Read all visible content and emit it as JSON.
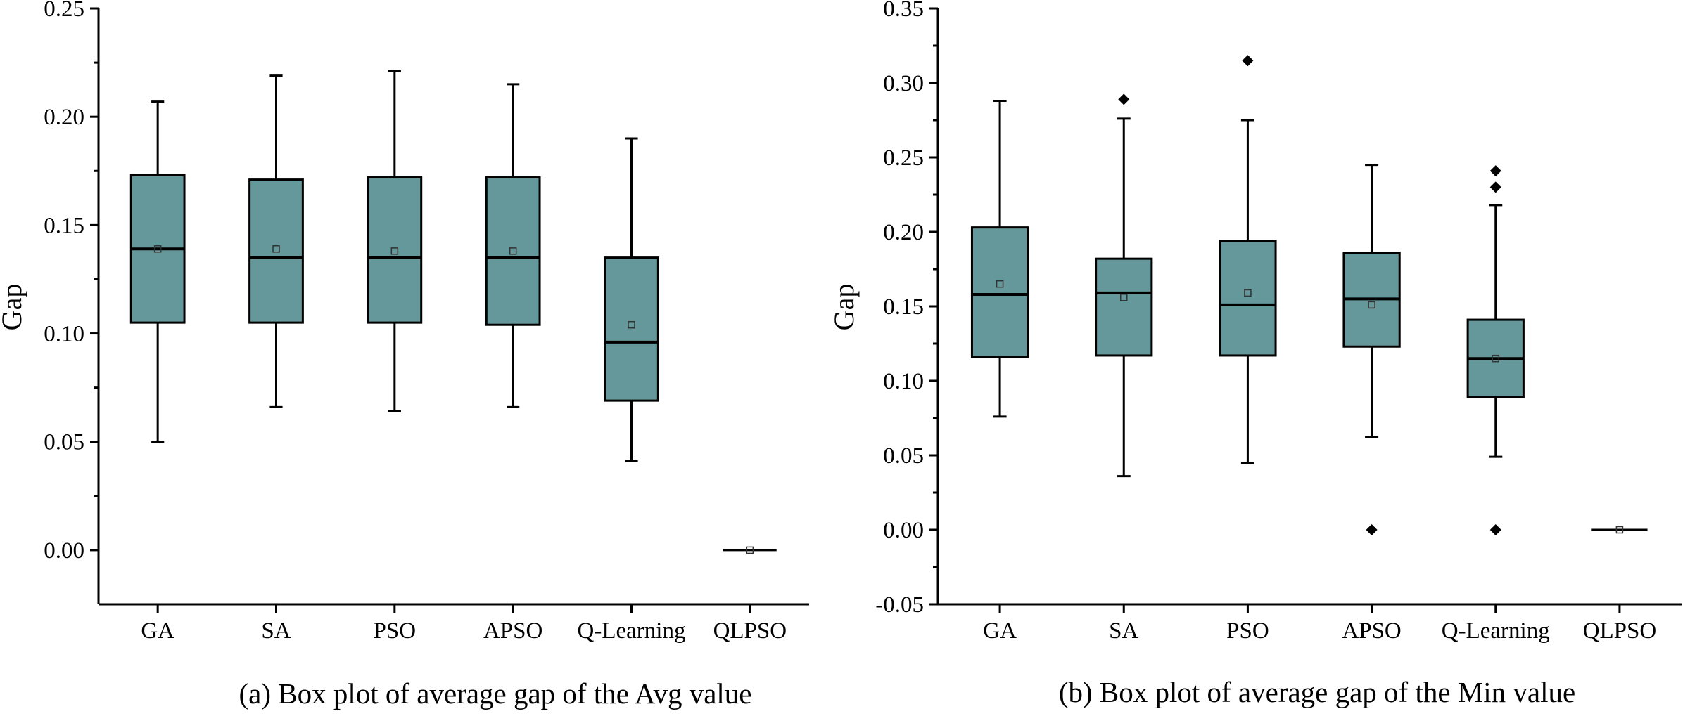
{
  "style": {
    "box_fill": "#65989a",
    "line_color": "#000000",
    "mean_marker_color": "#333333"
  },
  "chart_data": [
    {
      "type": "box",
      "caption": "(a) Box plot of average gap of the Avg value",
      "ylabel": "Gap",
      "xlabel": "",
      "ylim": [
        -0.025,
        0.25
      ],
      "yticks": [
        0.0,
        0.05,
        0.1,
        0.15,
        0.2,
        0.25
      ],
      "ytick_labels": [
        "0.00",
        "0.05",
        "0.10",
        "0.15",
        "0.20",
        "0.25"
      ],
      "categories": [
        "GA",
        "SA",
        "PSO",
        "APSO",
        "Q-Learning",
        "QLPSO"
      ],
      "boxes": [
        {
          "whisker_low": 0.05,
          "q1": 0.105,
          "median": 0.139,
          "q3": 0.173,
          "whisker_high": 0.207,
          "mean": 0.139,
          "outliers": []
        },
        {
          "whisker_low": 0.066,
          "q1": 0.105,
          "median": 0.135,
          "q3": 0.171,
          "whisker_high": 0.219,
          "mean": 0.139,
          "outliers": []
        },
        {
          "whisker_low": 0.064,
          "q1": 0.105,
          "median": 0.135,
          "q3": 0.172,
          "whisker_high": 0.221,
          "mean": 0.138,
          "outliers": []
        },
        {
          "whisker_low": 0.066,
          "q1": 0.104,
          "median": 0.135,
          "q3": 0.172,
          "whisker_high": 0.215,
          "mean": 0.138,
          "outliers": []
        },
        {
          "whisker_low": 0.041,
          "q1": 0.069,
          "median": 0.096,
          "q3": 0.135,
          "whisker_high": 0.19,
          "mean": 0.104,
          "outliers": []
        },
        {
          "whisker_low": 0.0,
          "q1": 0.0,
          "median": 0.0,
          "q3": 0.0,
          "whisker_high": 0.0,
          "mean": 0.0,
          "outliers": []
        }
      ]
    },
    {
      "type": "box",
      "caption": "(b) Box plot of average gap of the Min value",
      "ylabel": "Gap",
      "xlabel": "",
      "ylim": [
        -0.05,
        0.35
      ],
      "yticks": [
        -0.05,
        0.0,
        0.05,
        0.1,
        0.15,
        0.2,
        0.25,
        0.3,
        0.35
      ],
      "ytick_labels": [
        "-0.05",
        "0.00",
        "0.05",
        "0.10",
        "0.15",
        "0.20",
        "0.25",
        "0.30",
        "0.35"
      ],
      "categories": [
        "GA",
        "SA",
        "PSO",
        "APSO",
        "Q-Learning",
        "QLPSO"
      ],
      "boxes": [
        {
          "whisker_low": 0.076,
          "q1": 0.116,
          "median": 0.158,
          "q3": 0.203,
          "whisker_high": 0.288,
          "mean": 0.165,
          "outliers": []
        },
        {
          "whisker_low": 0.036,
          "q1": 0.117,
          "median": 0.159,
          "q3": 0.182,
          "whisker_high": 0.276,
          "mean": 0.156,
          "outliers": [
            0.289
          ]
        },
        {
          "whisker_low": 0.045,
          "q1": 0.117,
          "median": 0.151,
          "q3": 0.194,
          "whisker_high": 0.275,
          "mean": 0.159,
          "outliers": [
            0.315
          ]
        },
        {
          "whisker_low": 0.062,
          "q1": 0.123,
          "median": 0.155,
          "q3": 0.186,
          "whisker_high": 0.245,
          "mean": 0.151,
          "outliers": [
            0.0
          ]
        },
        {
          "whisker_low": 0.049,
          "q1": 0.089,
          "median": 0.115,
          "q3": 0.141,
          "whisker_high": 0.218,
          "mean": 0.115,
          "outliers": [
            0.241,
            0.23,
            0.0
          ]
        },
        {
          "whisker_low": 0.0,
          "q1": 0.0,
          "median": 0.0,
          "q3": 0.0,
          "whisker_high": 0.0,
          "mean": 0.0,
          "outliers": []
        }
      ]
    }
  ]
}
